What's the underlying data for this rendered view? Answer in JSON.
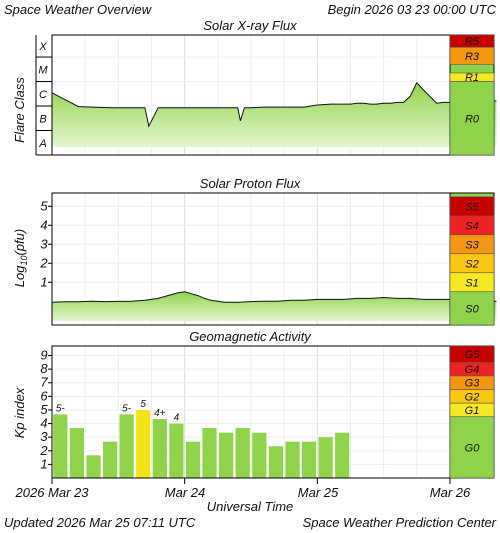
{
  "header": {
    "title": "Space Weather Overview",
    "begin": "Begin 2026 03 23 00:00 UTC"
  },
  "footer": {
    "updated": "Updated 2026 Mar 25 07:11 UTC",
    "credit": "Space Weather Prediction Center"
  },
  "colors": {
    "fill_green": "#8fd34a",
    "fill_light": "#e4f6d0",
    "bar_green": "#8fd34a",
    "bar_yellow": "#f2e317",
    "grid": "#dcdcdc",
    "level_colors": {
      "5": "#c80000",
      "4": "#ee2222",
      "3": "#f5960f",
      "2": "#f9c810",
      "1": "#f5ea20",
      "0": "#8fd34a"
    }
  },
  "chart_data": [
    {
      "id": "xray",
      "type": "area",
      "title": "Solar X-ray Flux",
      "ylabel": "Flare Class",
      "y_classes": [
        "X",
        "M",
        "C",
        "B",
        "A"
      ],
      "x_range": [
        "2026-03-23 00:00",
        "2026-03-26 00:00"
      ],
      "x_ticks": [
        "2026 Mar 23",
        "Mar 24",
        "Mar 25",
        "Mar 26"
      ],
      "scale_levels": [
        {
          "label": "R5",
          "level": 5
        },
        {
          "label": "R3",
          "level": 3
        },
        {
          "label": "R1",
          "level": 1
        },
        {
          "label": "R0",
          "level": 0
        }
      ],
      "series": [
        {
          "x": [
            0,
            0.05,
            0.2,
            0.3,
            0.45,
            0.6,
            0.7,
            0.73,
            0.8,
            0.9,
            1.0,
            1.2,
            1.3,
            1.4,
            1.42,
            1.45,
            1.5,
            1.6,
            1.7,
            1.8,
            1.9,
            2.0,
            2.1,
            2.2,
            2.25,
            2.3,
            2.35,
            2.4,
            2.45,
            2.5,
            2.55,
            2.6,
            2.65,
            2.7,
            2.75,
            2.8,
            2.9,
            2.95,
            3.0,
            3.05,
            3.08,
            3.12,
            3.15,
            3.2,
            3.25,
            3.35
          ],
          "y": [
            "C3.5",
            "C2.5",
            "B9.5",
            "B9",
            "B8.5",
            "B8.5",
            "B8.5",
            "B1.5",
            "B8.5",
            "B8.5",
            "B8.5",
            "B8.5",
            "B8.5",
            "B8.5",
            "B2.5",
            "B8.5",
            "B8.5",
            "B9",
            "B9",
            "B9",
            "B9",
            "C1.1",
            "C1.2",
            "C1.2",
            "C1.2",
            "C1.3",
            "C1.3",
            "C1.2",
            "C1.2",
            "C1.3",
            "C1.3",
            "C1.4",
            "C1.4",
            "C2.5",
            "C9",
            "C4.5",
            "C1.3",
            "C1.4",
            "C1.4",
            "C1.6",
            "C6.5",
            "C2.5",
            "C2.2",
            "C4",
            "C1.8",
            "C1.6"
          ]
        }
      ]
    },
    {
      "id": "proton",
      "type": "area",
      "title": "Solar Proton Flux",
      "ylabel": "Log₁₀(pfu)",
      "ylabel_base": "Log",
      "ylabel_sub": "10",
      "ylabel_unit": "(pfu)",
      "y_ticks": [
        "5",
        "4",
        "3",
        "2",
        "1"
      ],
      "ylim": [
        -1.25,
        5.7
      ],
      "scale_levels": [
        {
          "label": "S5",
          "level": 5
        },
        {
          "label": "S4",
          "level": 4
        },
        {
          "label": "S3",
          "level": 3
        },
        {
          "label": "S2",
          "level": 2
        },
        {
          "label": "S1",
          "level": 1
        },
        {
          "label": "S0",
          "level": 0
        }
      ],
      "series": [
        {
          "x": [
            0,
            0.1,
            0.2,
            0.3,
            0.4,
            0.5,
            0.6,
            0.7,
            0.8,
            0.9,
            0.95,
            1.0,
            1.05,
            1.1,
            1.15,
            1.2,
            1.25,
            1.3,
            1.4,
            1.5,
            1.6,
            1.7,
            1.8,
            1.9,
            2.0,
            2.1,
            2.2,
            2.3,
            2.4,
            2.5,
            2.6,
            2.7,
            2.8,
            2.9,
            3.0,
            3.1,
            3.2,
            3.3,
            3.35
          ],
          "y": [
            -0.05,
            -0.03,
            -0.03,
            0.0,
            -0.02,
            -0.01,
            0.0,
            0.05,
            0.15,
            0.35,
            0.45,
            0.5,
            0.4,
            0.3,
            0.15,
            0.05,
            0.0,
            -0.05,
            -0.05,
            -0.02,
            0.0,
            0.0,
            0.05,
            0.05,
            0.1,
            0.1,
            0.1,
            0.15,
            0.15,
            0.2,
            0.15,
            0.15,
            0.1,
            0.1,
            0.1,
            0.05,
            0.05,
            0.0,
            0.0
          ]
        }
      ]
    },
    {
      "id": "kp",
      "type": "bar",
      "title": "Geomagnetic Activity",
      "ylabel": "Kp index",
      "xlabel": "Universal Time",
      "y_ticks": [
        "9",
        "8",
        "7",
        "6",
        "5",
        "4",
        "3",
        "2",
        "1"
      ],
      "ylim": [
        0,
        9.7
      ],
      "scale_levels": [
        {
          "label": "G5",
          "level": 5
        },
        {
          "label": "G4",
          "level": 4
        },
        {
          "label": "G3",
          "level": 3
        },
        {
          "label": "G2",
          "level": 2
        },
        {
          "label": "G1",
          "level": 1
        },
        {
          "label": "G0",
          "level": 0
        }
      ],
      "bars": [
        {
          "value": 4.67,
          "label": "5-",
          "color": "green"
        },
        {
          "value": 3.67,
          "label": "",
          "color": "green"
        },
        {
          "value": 1.67,
          "label": "",
          "color": "green"
        },
        {
          "value": 2.67,
          "label": "",
          "color": "green"
        },
        {
          "value": 4.67,
          "label": "5-",
          "color": "green"
        },
        {
          "value": 5.0,
          "label": "5",
          "color": "yellow"
        },
        {
          "value": 4.33,
          "label": "4+",
          "color": "green"
        },
        {
          "value": 4.0,
          "label": "4",
          "color": "green"
        },
        {
          "value": 2.67,
          "label": "",
          "color": "green"
        },
        {
          "value": 3.67,
          "label": "",
          "color": "green"
        },
        {
          "value": 3.33,
          "label": "",
          "color": "green"
        },
        {
          "value": 3.67,
          "label": "",
          "color": "green"
        },
        {
          "value": 3.33,
          "label": "",
          "color": "green"
        },
        {
          "value": 2.33,
          "label": "",
          "color": "green"
        },
        {
          "value": 2.67,
          "label": "",
          "color": "green"
        },
        {
          "value": 2.67,
          "label": "",
          "color": "green"
        },
        {
          "value": 3.0,
          "label": "",
          "color": "green"
        },
        {
          "value": 3.33,
          "label": "",
          "color": "green"
        }
      ]
    }
  ],
  "x_axis": {
    "tick_labels": [
      "2026 Mar 23",
      "Mar 24",
      "Mar 25",
      "Mar 26"
    ],
    "label": "Universal Time"
  }
}
